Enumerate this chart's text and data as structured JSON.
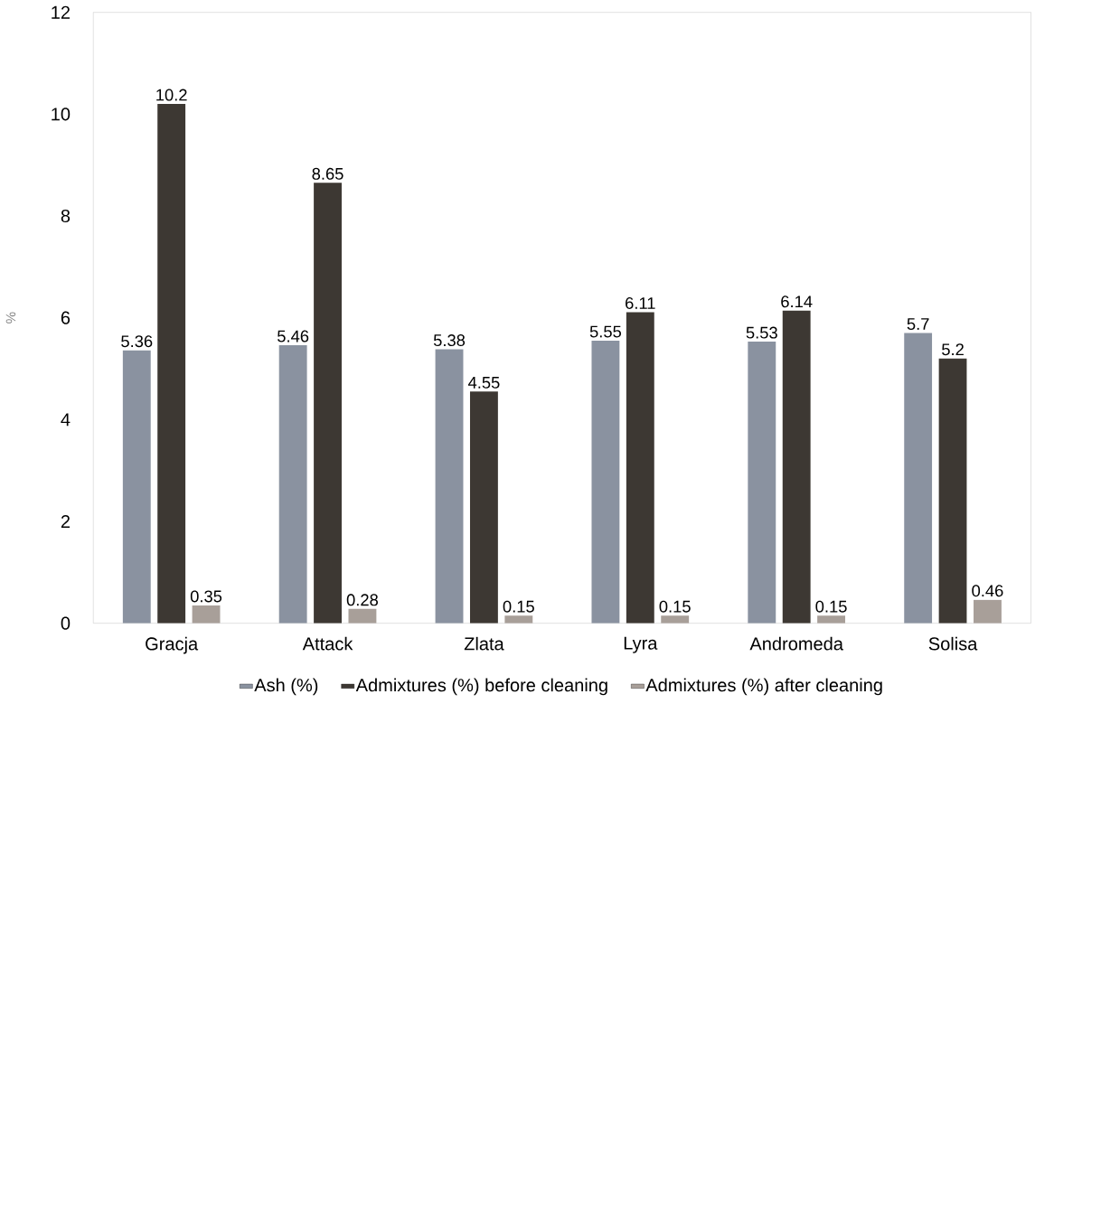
{
  "chart_data": {
    "type": "bar",
    "ylabel": "%",
    "categories": [
      "Gracja",
      "Attack",
      "Zlata",
      "Lyra",
      "Andromeda",
      "Solisa"
    ],
    "series": [
      {
        "name": "Ash (%)",
        "color": "#8a92a0",
        "values": [
          5.36,
          5.46,
          5.38,
          5.55,
          5.53,
          5.7
        ]
      },
      {
        "name": "Admixtures (%) before cleaning",
        "color": "#3d3833",
        "values": [
          10.2,
          8.65,
          4.55,
          6.11,
          6.14,
          5.2
        ]
      },
      {
        "name": "Admixtures (%) after cleaning",
        "color": "#a89f99",
        "values": [
          0.35,
          0.28,
          0.15,
          0.15,
          0.15,
          0.46
        ]
      }
    ],
    "ylim": [
      0,
      12
    ],
    "yticks": [
      0,
      2,
      4,
      6,
      8,
      10,
      12
    ],
    "grid": false,
    "legend": "bottom",
    "data_labels": true
  }
}
